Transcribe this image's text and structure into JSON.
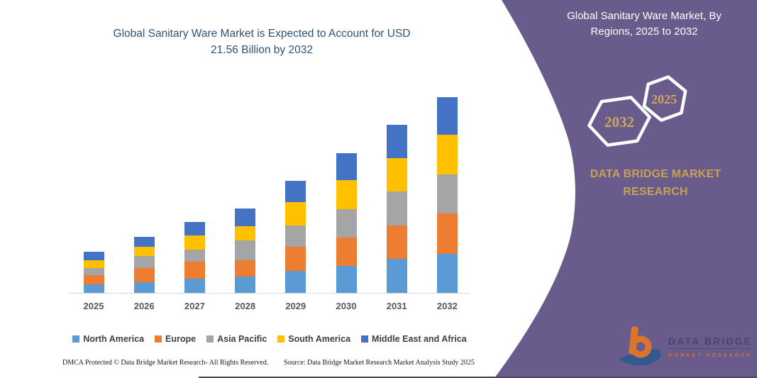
{
  "page": {
    "background": "#FFFFFF"
  },
  "chart": {
    "title_line1": "Global Sanitary Ware Market is Expected to Account for USD",
    "title_line2": "21.56 Billion by 2032",
    "title_color": "#2F5377"
  },
  "chart_data": {
    "type": "bar",
    "stacked": true,
    "title": "Global Sanitary Ware Market is Expected to Account for USD 21.56 Billion by 2032",
    "units": "USD Billion",
    "categories": [
      "2025",
      "2026",
      "2027",
      "2028",
      "2029",
      "2030",
      "2031",
      "2032"
    ],
    "series": [
      {
        "name": "North America",
        "color": "#5B9BD5",
        "values": [
          0.91,
          1.17,
          1.56,
          1.82,
          2.39,
          2.99,
          3.71,
          4.29
        ]
      },
      {
        "name": "Europe",
        "color": "#ED7D31",
        "values": [
          1.04,
          1.56,
          1.89,
          1.77,
          2.67,
          3.06,
          3.69,
          4.42
        ]
      },
      {
        "name": "Asia Pacific",
        "color": "#A5A5A5",
        "values": [
          0.78,
          1.3,
          1.35,
          2.18,
          2.34,
          3.17,
          3.76,
          4.29
        ]
      },
      {
        "name": "South America",
        "color": "#FFC000",
        "values": [
          0.86,
          1.04,
          1.56,
          1.56,
          2.6,
          3.17,
          3.64,
          4.42
        ]
      },
      {
        "name": "Middle East and Africa",
        "color": "#4472C4",
        "values": [
          0.96,
          1.11,
          1.43,
          1.95,
          2.28,
          2.99,
          3.69,
          4.14
        ]
      }
    ],
    "totals": [
      4.55,
      6.18,
      7.79,
      9.28,
      12.28,
      15.38,
      18.49,
      21.56
    ],
    "ylim": [
      0,
      22
    ],
    "grid": false,
    "legend_position": "bottom",
    "xlabel": "",
    "ylabel": ""
  },
  "footer": {
    "left": "DMCA Protected © Data Bridge Market Research-  All Rights Reserved.",
    "right": "Source: Data Bridge Market Research  Market Analysis Study 2025"
  },
  "panel": {
    "color": "#695C8D",
    "title_line1": "Global Sanitary Ware Market, By",
    "title_line2": "Regions, 2025 to 2032",
    "hexagon_large_label": "2032",
    "hexagon_small_label": "2025",
    "gold_color": "#C8A153",
    "brand_line1": "DATA BRIDGE MARKET",
    "brand_line2": "RESEARCH",
    "logo_title": "DATA BRIDGE",
    "logo_subtitle": "MARKET RESEARCH"
  }
}
